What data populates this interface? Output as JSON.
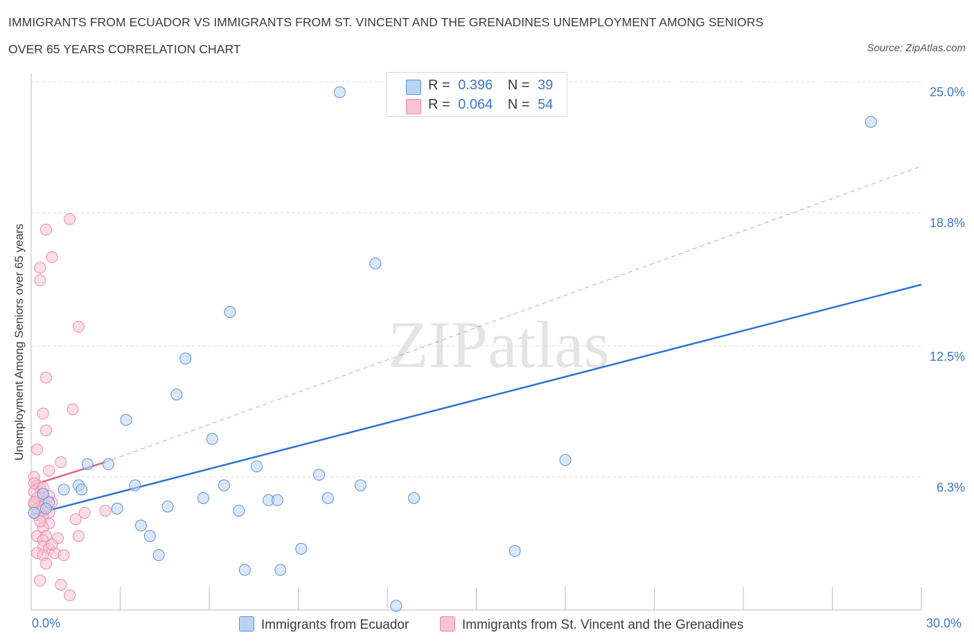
{
  "header": {
    "title_line1": "IMMIGRANTS FROM ECUADOR VS IMMIGRANTS FROM ST. VINCENT AND THE GRENADINES UNEMPLOYMENT AMONG SENIORS",
    "title_line2": "OVER 65 YEARS CORRELATION CHART",
    "source": "Source: ZipAtlas.com"
  },
  "watermark": "ZIPatlas",
  "colors": {
    "blue_fill": "#b9d3f5",
    "blue_stroke": "#5b8fd6",
    "blue_line": "#2f74d0",
    "pink_fill": "#f8c3d2",
    "pink_stroke": "#e98aa6",
    "pink_line": "#e0608a",
    "grid": "#dcdcdc",
    "axis_label": "#3a76c8"
  },
  "legend": {
    "rows": [
      {
        "r_label": "R =",
        "r_value": "0.396",
        "n_label": "N =",
        "n_value": "39"
      },
      {
        "r_label": "R =",
        "r_value": "0.064",
        "n_label": "N =",
        "n_value": "54"
      }
    ]
  },
  "bottom_legend": {
    "series1": "Immigrants from Ecuador",
    "series2": "Immigrants from St. Vincent and the Grenadines"
  },
  "axes": {
    "x_min_label": "0.0%",
    "x_max_label": "30.0%",
    "y_ticks": [
      "25.0%",
      "18.8%",
      "12.5%",
      "6.3%"
    ],
    "y_title": "Unemployment Among Seniors over 65 years"
  },
  "chart_data": {
    "type": "scatter",
    "title": "IMMIGRANTS FROM ECUADOR VS IMMIGRANTS FROM ST. VINCENT AND THE GRENADINES UNEMPLOYMENT AMONG SENIORS OVER 65 YEARS CORRELATION CHART",
    "xlabel": "",
    "ylabel": "Unemployment Among Seniors over 65 years",
    "xlim": [
      0,
      30
    ],
    "ylim": [
      0,
      25
    ],
    "y_tick_values": [
      25.0,
      18.8,
      12.5,
      6.3
    ],
    "y_tick_labels": [
      "25.0%",
      "18.8%",
      "12.5%",
      "6.3%"
    ],
    "x_tick_labels": [
      "0.0%",
      "30.0%"
    ],
    "grid": true,
    "series": [
      {
        "name": "Immigrants from Ecuador",
        "R": 0.396,
        "N": 39,
        "trend": {
          "x": [
            0,
            30
          ],
          "y": [
            4.5,
            15.4
          ]
        },
        "points": [
          [
            10.4,
            24.5
          ],
          [
            28.3,
            23.1
          ],
          [
            11.6,
            16.4
          ],
          [
            6.7,
            14.1
          ],
          [
            5.2,
            11.9
          ],
          [
            4.9,
            10.2
          ],
          [
            3.2,
            9.0
          ],
          [
            6.1,
            8.1
          ],
          [
            18.0,
            7.1
          ],
          [
            1.9,
            6.9
          ],
          [
            2.6,
            6.9
          ],
          [
            7.6,
            6.8
          ],
          [
            9.7,
            6.4
          ],
          [
            1.6,
            5.9
          ],
          [
            3.5,
            5.9
          ],
          [
            6.5,
            5.9
          ],
          [
            11.1,
            5.9
          ],
          [
            1.1,
            5.7
          ],
          [
            0.4,
            5.5
          ],
          [
            1.7,
            5.7
          ],
          [
            5.8,
            5.3
          ],
          [
            8.0,
            5.2
          ],
          [
            8.3,
            5.2
          ],
          [
            10.0,
            5.3
          ],
          [
            12.9,
            5.3
          ],
          [
            0.6,
            5.1
          ],
          [
            0.5,
            4.8
          ],
          [
            2.9,
            4.8
          ],
          [
            4.6,
            4.9
          ],
          [
            7.0,
            4.7
          ],
          [
            3.7,
            4.0
          ],
          [
            4.0,
            3.5
          ],
          [
            9.1,
            2.9
          ],
          [
            4.3,
            2.6
          ],
          [
            16.3,
            2.8
          ],
          [
            7.2,
            1.9
          ],
          [
            8.4,
            1.9
          ],
          [
            12.3,
            0.2
          ],
          [
            0.1,
            4.6
          ]
        ]
      },
      {
        "name": "Immigrants from St. Vincent and the Grenadines",
        "R": 0.064,
        "N": 54,
        "trend": {
          "x": [
            0,
            2.5
          ],
          "y": [
            5.9,
            7.0
          ]
        },
        "trend_dashed": {
          "x": [
            2.5,
            30
          ],
          "y": [
            7.0,
            21.0
          ]
        },
        "points": [
          [
            1.3,
            18.5
          ],
          [
            0.5,
            18.0
          ],
          [
            0.7,
            16.7
          ],
          [
            0.3,
            16.2
          ],
          [
            0.3,
            15.6
          ],
          [
            1.6,
            13.4
          ],
          [
            0.5,
            11.0
          ],
          [
            1.4,
            9.5
          ],
          [
            0.4,
            9.3
          ],
          [
            0.5,
            8.5
          ],
          [
            0.2,
            7.6
          ],
          [
            1.0,
            7.0
          ],
          [
            0.6,
            6.6
          ],
          [
            0.1,
            6.3
          ],
          [
            0.2,
            5.9
          ],
          [
            0.3,
            5.8
          ],
          [
            0.1,
            5.6
          ],
          [
            0.4,
            5.5
          ],
          [
            0.2,
            5.3
          ],
          [
            0.5,
            5.2
          ],
          [
            0.7,
            5.1
          ],
          [
            0.1,
            5.0
          ],
          [
            0.3,
            4.9
          ],
          [
            0.4,
            4.7
          ],
          [
            0.6,
            4.6
          ],
          [
            0.2,
            4.5
          ],
          [
            1.8,
            4.6
          ],
          [
            2.5,
            4.7
          ],
          [
            0.4,
            4.4
          ],
          [
            1.5,
            4.3
          ],
          [
            0.6,
            4.1
          ],
          [
            0.4,
            3.9
          ],
          [
            0.2,
            3.5
          ],
          [
            0.5,
            3.5
          ],
          [
            0.9,
            3.4
          ],
          [
            1.6,
            3.5
          ],
          [
            0.4,
            3.3
          ],
          [
            0.4,
            3.0
          ],
          [
            0.6,
            2.9
          ],
          [
            0.8,
            2.7
          ],
          [
            0.2,
            2.7
          ],
          [
            0.4,
            2.6
          ],
          [
            1.1,
            2.6
          ],
          [
            0.5,
            2.2
          ],
          [
            0.3,
            1.4
          ],
          [
            1.0,
            1.2
          ],
          [
            1.3,
            0.7
          ],
          [
            0.1,
            6.0
          ],
          [
            0.2,
            4.8
          ],
          [
            0.6,
            5.4
          ],
          [
            0.3,
            4.2
          ],
          [
            0.7,
            3.1
          ],
          [
            0.1,
            5.1
          ],
          [
            0.4,
            5.8
          ]
        ]
      }
    ]
  }
}
